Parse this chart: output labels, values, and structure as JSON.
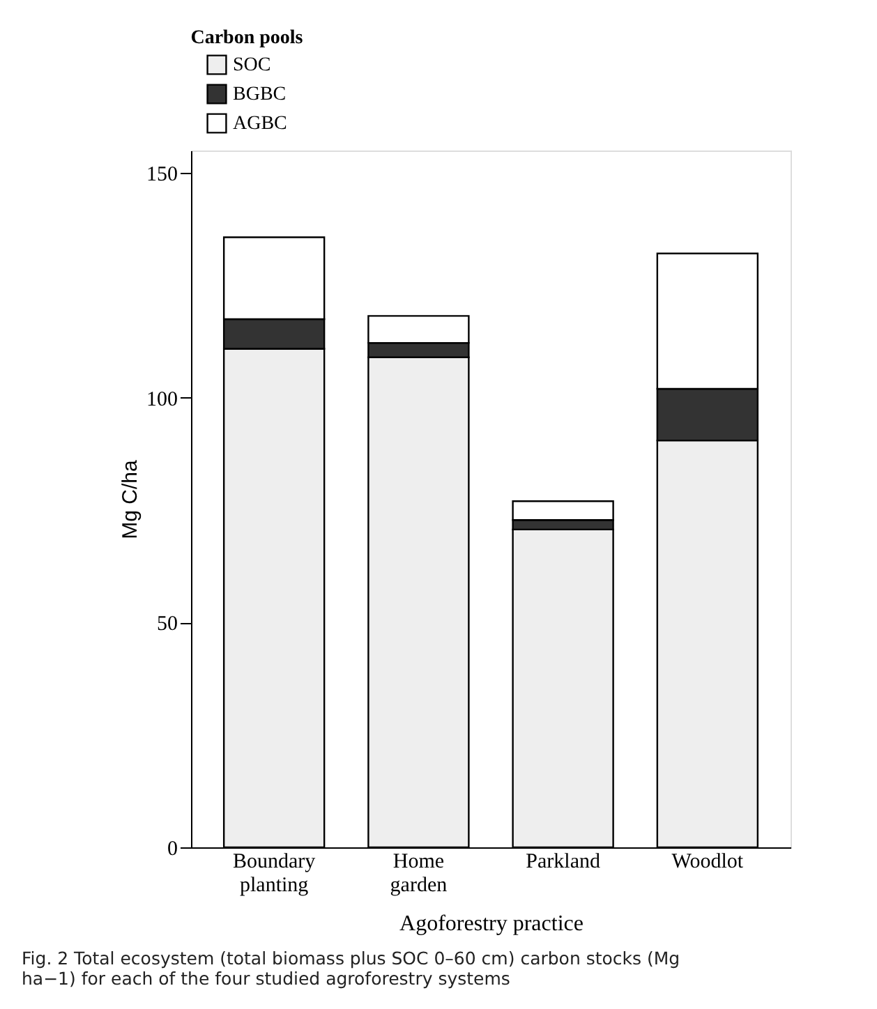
{
  "chart_data": {
    "type": "bar",
    "stacked": true,
    "categories": [
      "Boundary planting",
      "Home garden",
      "Parkland",
      "Woodlot"
    ],
    "series": [
      {
        "name": "SOC",
        "color": "#eeeeee",
        "values": [
          110.9,
          109.0,
          70.7,
          90.5
        ]
      },
      {
        "name": "BGBC",
        "color": "#333333",
        "values": [
          6.6,
          3.2,
          2.1,
          11.5
        ]
      },
      {
        "name": "AGBC",
        "color": "#ffffff",
        "values": [
          18.2,
          6.0,
          4.2,
          30.1
        ]
      }
    ],
    "xlabel": "Agoforestry practice",
    "ylabel": "Mg C/ha",
    "legend_title": "Carbon pools",
    "legend": "top",
    "ylim": [
      0,
      155
    ],
    "yticks": [
      0,
      50,
      100,
      150
    ],
    "grid": false,
    "annotations": [
      "Fig. 2 Total ecosystem (total biomass plus SOC 0–60 cm) carbon stocks (Mg ha−1) for each of the four studied agroforestry systems"
    ]
  }
}
